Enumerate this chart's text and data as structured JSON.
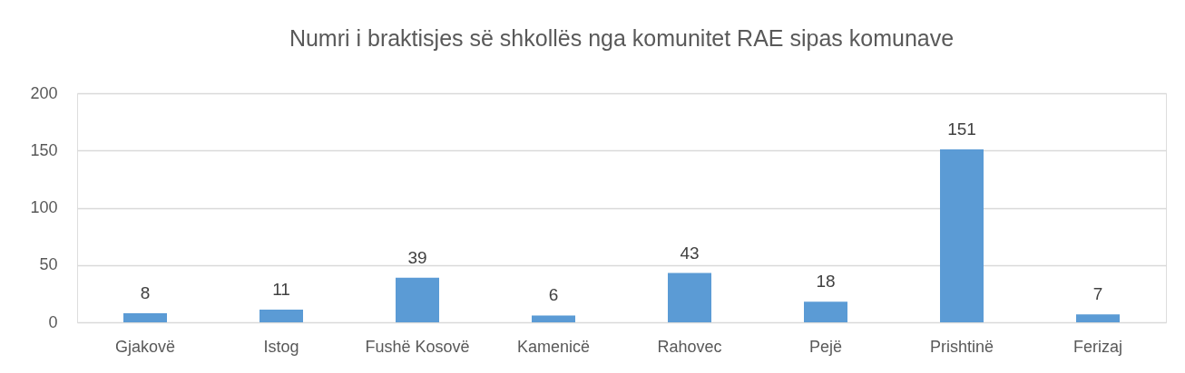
{
  "chart_data": {
    "type": "bar",
    "title": "Numri i braktisjes së shkollës  nga komunitet RAE sipas komunave",
    "categories": [
      "Gjakovë",
      "Istog",
      "Fushë Kosovë",
      "Kamenicë",
      "Rahovec",
      "Pejë",
      "Prishtinë",
      "Ferizaj"
    ],
    "values": [
      8,
      11,
      39,
      6,
      43,
      18,
      151,
      7
    ],
    "color": "#5b9bd5",
    "ylim": [
      0,
      200
    ],
    "yticks": [
      0,
      50,
      100,
      150,
      200
    ],
    "grid": "y",
    "data_labels": true
  }
}
